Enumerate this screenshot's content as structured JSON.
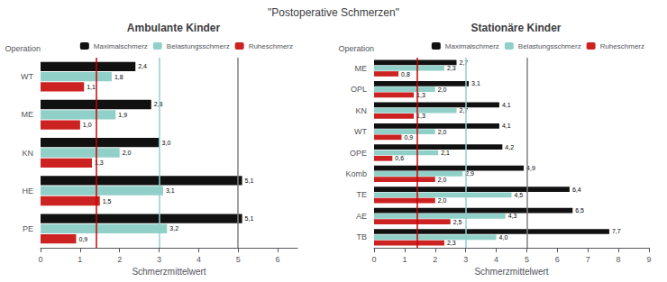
{
  "title": "\"Postoperative Schmerzen\"",
  "chart_data": [
    {
      "type": "bar",
      "orientation": "horizontal",
      "title": "Ambulante Kinder",
      "xlabel": "Schmerzmittelwert",
      "annotations": [
        "Operation"
      ],
      "categories": [
        "PE",
        "HE",
        "KN",
        "ME",
        "WT"
      ],
      "series": [
        {
          "name": "Maximalschmerz",
          "color": "#111111",
          "values": [
            5.1,
            5.1,
            3.0,
            2.8,
            2.4
          ],
          "value_labels": [
            "5,1",
            "5,1",
            "3,0",
            "2,8",
            "2,4"
          ]
        },
        {
          "name": "Belastungsschmerz",
          "color": "#90d0c8",
          "values": [
            3.2,
            3.1,
            2.0,
            1.9,
            1.8
          ],
          "value_labels": [
            "3,2",
            "3,1",
            "2,0",
            "1,9",
            "1,8"
          ]
        },
        {
          "name": "Ruheschmerz",
          "color": "#cc2222",
          "values": [
            0.9,
            1.5,
            1.3,
            1.0,
            1.1
          ],
          "value_labels": [
            "0,9",
            "1,5",
            "1,3",
            "1,0",
            "1,1"
          ]
        }
      ],
      "vlines": [
        {
          "value": 1.4,
          "color": "#cc0000"
        },
        {
          "value": 3.0,
          "color": "#90d0c8"
        },
        {
          "value": 5.0,
          "color": "#808080"
        }
      ],
      "xlim": [
        0,
        6.5
      ],
      "xticks": [
        0,
        1,
        2,
        3,
        4,
        5,
        6
      ],
      "grid": false,
      "legend": "upper right",
      "data_labels": true
    },
    {
      "type": "bar",
      "orientation": "horizontal",
      "title": "Stationäre Kinder",
      "xlabel": "Schmerzmittelwert",
      "annotations": [
        "Operation"
      ],
      "categories": [
        "TB",
        "AE",
        "TE",
        "Komb",
        "OPE",
        "WT",
        "KN",
        "OPL",
        "ME"
      ],
      "series": [
        {
          "name": "Maximalschmerz",
          "color": "#111111",
          "values": [
            7.7,
            6.5,
            6.4,
            4.9,
            4.2,
            4.1,
            4.1,
            3.1,
            2.7
          ],
          "value_labels": [
            "7,7",
            "6,5",
            "6,4",
            "4,9",
            "4,2",
            "4,1",
            "4,1",
            "3,1",
            "2,7"
          ]
        },
        {
          "name": "Belastungsschmerz",
          "color": "#90d0c8",
          "values": [
            4.0,
            4.3,
            4.5,
            2.9,
            2.1,
            2.0,
            2.7,
            2.0,
            2.3
          ],
          "value_labels": [
            "4,0",
            "4,3",
            "4,5",
            "2,9",
            "2,1",
            "2,0",
            "2,7",
            "2,0",
            "2,3"
          ]
        },
        {
          "name": "Ruheschmerz",
          "color": "#cc2222",
          "values": [
            2.3,
            2.5,
            2.0,
            2.0,
            0.6,
            0.9,
            1.3,
            1.3,
            0.8
          ],
          "value_labels": [
            "2,3",
            "2,5",
            "2,0",
            "2,0",
            "0,6",
            "0,9",
            "1,3",
            "1,3",
            "0,8"
          ]
        }
      ],
      "vlines": [
        {
          "value": 1.4,
          "color": "#cc0000"
        },
        {
          "value": 3.0,
          "color": "#90d0c8"
        },
        {
          "value": 5.0,
          "color": "#808080"
        }
      ],
      "xlim": [
        0,
        9.0
      ],
      "xticks": [
        0,
        1,
        2,
        3,
        4,
        5,
        6,
        7,
        8,
        9
      ],
      "grid": false,
      "legend": "upper right",
      "data_labels": true
    }
  ]
}
